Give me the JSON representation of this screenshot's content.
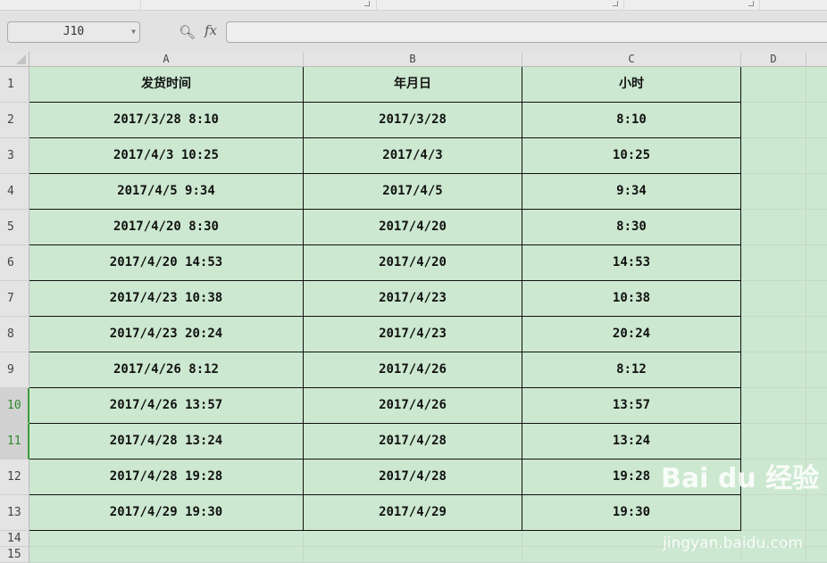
{
  "name_box": "J10",
  "formula_bar": {
    "fx_label": "fx",
    "value": ""
  },
  "columns": [
    "A",
    "B",
    "C",
    "D"
  ],
  "rows": [
    [
      "发货时间",
      "年月日",
      "小时"
    ],
    [
      "2017/3/28 8:10",
      "2017/3/28",
      "8:10"
    ],
    [
      "2017/4/3 10:25",
      "2017/4/3",
      "10:25"
    ],
    [
      "2017/4/5 9:34",
      "2017/4/5",
      "9:34"
    ],
    [
      "2017/4/20 8:30",
      "2017/4/20",
      "8:30"
    ],
    [
      "2017/4/20 14:53",
      "2017/4/20",
      "14:53"
    ],
    [
      "2017/4/23 10:38",
      "2017/4/23",
      "10:38"
    ],
    [
      "2017/4/23 20:24",
      "2017/4/23",
      "20:24"
    ],
    [
      "2017/4/26 8:12",
      "2017/4/26",
      "8:12"
    ],
    [
      "2017/4/26 13:57",
      "2017/4/26",
      "13:57"
    ],
    [
      "2017/4/28 13:24",
      "2017/4/28",
      "13:24"
    ],
    [
      "2017/4/28 19:28",
      "2017/4/28",
      "19:28"
    ],
    [
      "2017/4/29 19:30",
      "2017/4/29",
      "19:30"
    ]
  ],
  "row_numbers": [
    "1",
    "2",
    "3",
    "4",
    "5",
    "6",
    "7",
    "8",
    "9",
    "10",
    "11",
    "12",
    "13",
    "14",
    "15"
  ],
  "selected_rows": [
    "10",
    "11"
  ],
  "watermark": {
    "logo": "Bai du 经验",
    "url": "jingyan.baidu.com"
  }
}
